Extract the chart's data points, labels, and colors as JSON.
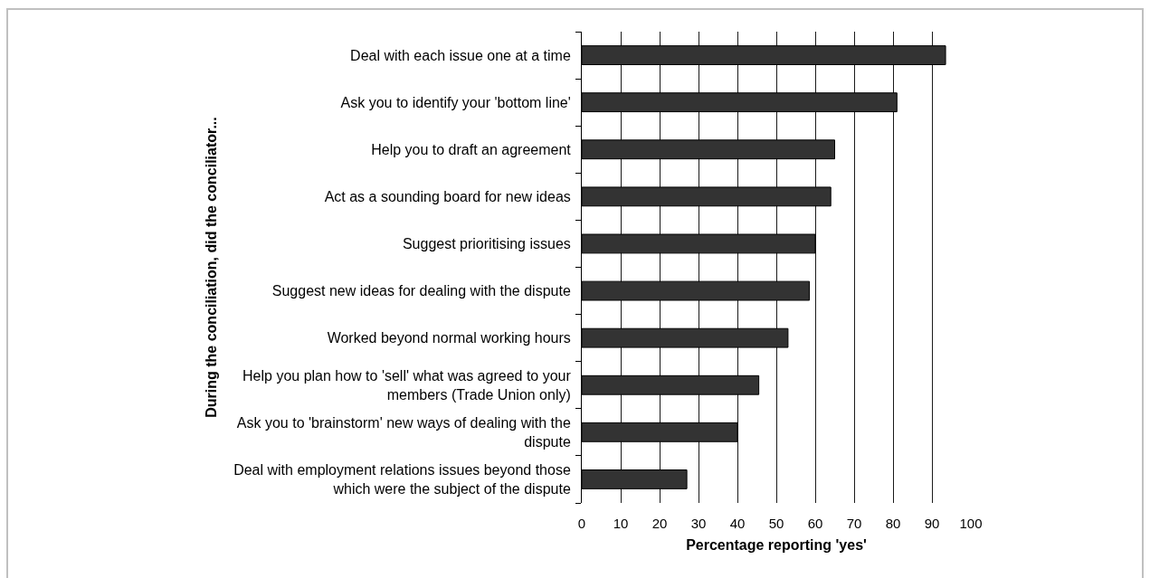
{
  "chart_data": {
    "type": "bar",
    "orientation": "horizontal",
    "categories": [
      "Deal with each issue one at a time",
      "Ask you to identify your 'bottom line'",
      "Help you to draft an agreement",
      "Act as a sounding board for new ideas",
      "Suggest prioritising issues",
      "Suggest new ideas for dealing with the dispute",
      "Worked beyond normal working hours",
      "Help you plan how to 'sell' what was agreed to your members (Trade Union only)",
      "Ask you to 'brainstorm' new ways of dealing with the dispute",
      "Deal with employment relations issues beyond those which were the subject of the dispute"
    ],
    "values": [
      93.5,
      81,
      65,
      64,
      60,
      58.5,
      53,
      45.5,
      40,
      27
    ],
    "color": "#333333",
    "xlabel": "Percentage reporting 'yes'",
    "ylabel": "During the conciliation, did the conciliator...",
    "xlim": [
      0,
      100
    ],
    "xticks": [
      0,
      10,
      20,
      30,
      40,
      50,
      60,
      70,
      80,
      90,
      100
    ],
    "grid": "x"
  }
}
